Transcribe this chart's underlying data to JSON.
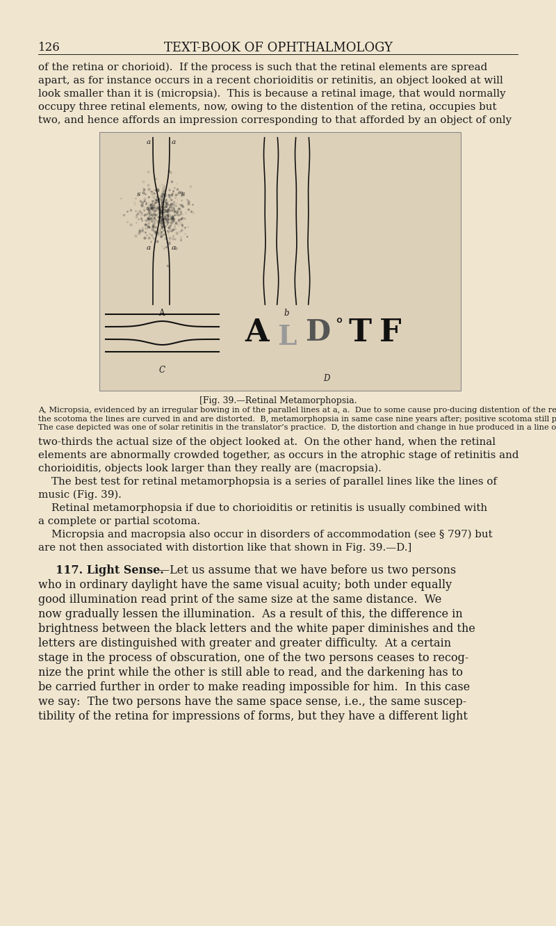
{
  "bg_color": "#f0e6d0",
  "page_num": "126",
  "title_header": "TEXT-BOOK OF OPHTHALMOLOGY",
  "body_text_intro": [
    "of the retina or chorioid).  If the process is such that the retinal elements are spread",
    "apart, as for instance occurs in a recent chorioiditis or retinitis, an object looked at will",
    "look smaller than it is (micropsia).  This is because a retinal image, that would normally",
    "occupy three retinal elements, now, owing to the distention of the retina, occupies but",
    "two, and hence affords an impression corresponding to that afforded by an object of only"
  ],
  "fig_caption_title": "[Fig. 39.—Retinal Metamorphopsia.",
  "fig_caption_lines": [
    "A, Micropsia, evidenced by an irregular bowing in of the parallel lines at a, a.  Due to some cause pro­ducing distention of the retinal elements (detachment of retina, recent central chorioiditis or reti­nitis).  The case depicted was one of central chorioiditis with a positive central scotoma, s, s.  Within",
    "the scotoma the lines are curved in and are distorted.  B, metamorphopsia in same case nine years after; positive scotoma still present.  C, Macropsia, evidenced by an irregular bowing out of the parallel lines, c.  Due to any cause producing shrinking of the retinal elements (atrophic chorioiditis, retinitis).",
    "The case depicted was one of solar retinitis in the translator’s practice.  D, the distortion and change in hue produced in a line of test-types by the metamorphopsia in this case.  The letters are all really of the same height and blackness.—D.]"
  ],
  "body_text_after": [
    "two-thirds the actual size of the object looked at.  On the other hand, when the retinal",
    "elements are abnormally crowded together, as occurs in the atrophic stage of retinitis and",
    "chorioiditis, objects look larger than they really are (macropsia).",
    "    The best test for retinal metamorphopsia is a series of parallel lines like the lines of",
    "music (Fig. 39).",
    "    Retinal metamorphopsia if due to chorioiditis or retinitis is usually combined with",
    "a complete or partial scotoma.",
    "    Micropsia and macropsia also occur in disorders of accommodation (see § 797) but",
    "are not then associated with distortion like that shown in Fig. 39.—D.]"
  ],
  "section_bold": "117. Light Sense.",
  "section_rest": "—Let us assume that we have before us two persons",
  "section_lines": [
    "who in ordinary daylight have the same visual acuity; both under equally",
    "good illumination read print of the same size at the same distance.  We",
    "now gradually lessen the illumination.  As a result of this, the difference in",
    "brightness between the black letters and the white paper diminishes and the",
    "letters are distinguished with greater and greater difficulty.  At a certain",
    "stage in the process of obscuration, one of the two persons ceases to recog-",
    "nize the print while the other is still able to read, and the darkening has to",
    "be carried further in order to make reading impossible for him.  In this case",
    "we say:  The two persons have the same space sense, i.e., the same suscep-",
    "tibility of the retina for impressions of forms, but they have a different light"
  ],
  "text_color": "#1a1a1a",
  "fig_box_color": "#ddd0b8",
  "fig_border_color": "#888888"
}
